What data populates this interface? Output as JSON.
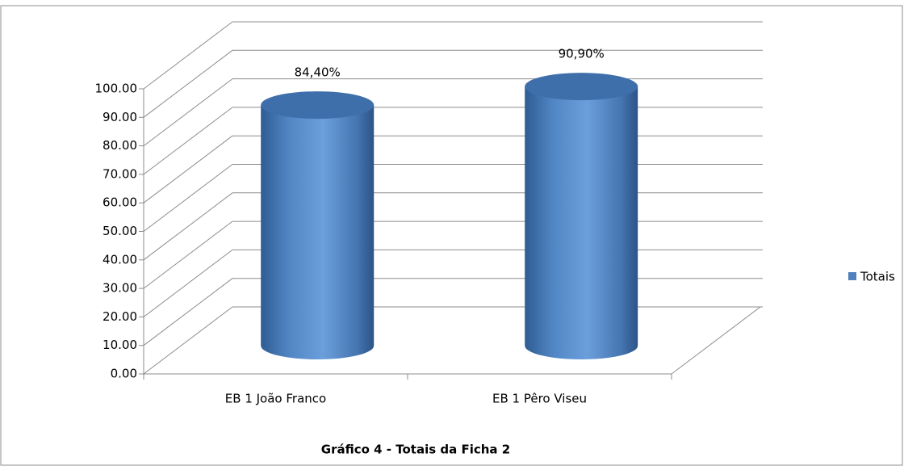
{
  "chart_data": {
    "type": "bar3d",
    "title": "Gráfico 4 - Totais da Ficha 2",
    "categories": [
      "EB 1 João Franco",
      "EB 1 Pêro Viseu"
    ],
    "series": [
      {
        "name": "Totais",
        "color": "#4f81bd",
        "values": [
          84.4,
          90.9
        ],
        "value_labels": [
          "84,40%",
          "90,90%"
        ]
      }
    ],
    "ylim": [
      0,
      100
    ],
    "yticks": [
      {
        "value": 0,
        "label": "0.00"
      },
      {
        "value": 10,
        "label": "10.00"
      },
      {
        "value": 20,
        "label": "20.00"
      },
      {
        "value": 30,
        "label": "30.00"
      },
      {
        "value": 40,
        "label": "40.00"
      },
      {
        "value": 50,
        "label": "50.00"
      },
      {
        "value": 60,
        "label": "60.00"
      },
      {
        "value": 70,
        "label": "70.00"
      },
      {
        "value": 80,
        "label": "80.00"
      },
      {
        "value": 90,
        "label": "90.00"
      },
      {
        "value": 100,
        "label": "100.00"
      }
    ],
    "grid": true,
    "legend": "right"
  }
}
